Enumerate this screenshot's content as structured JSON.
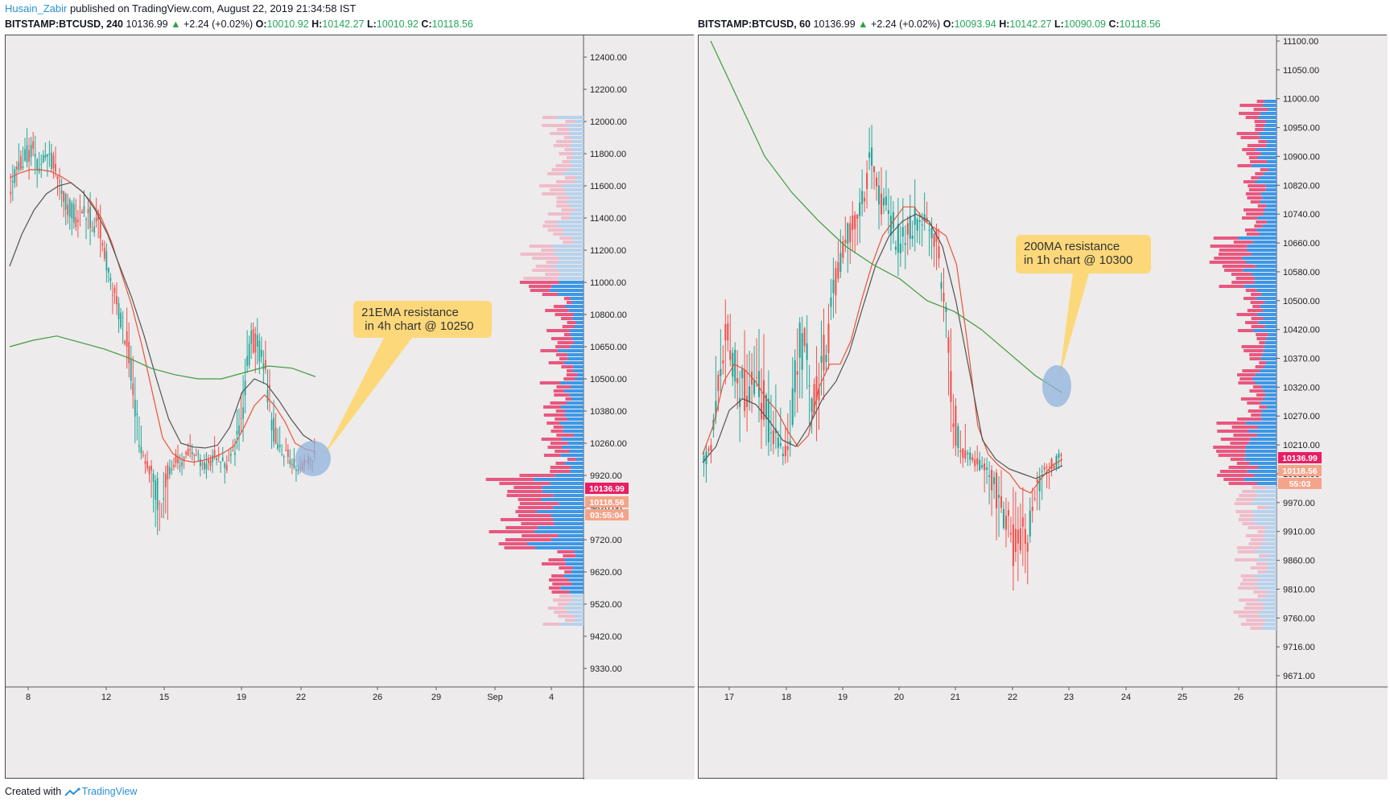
{
  "header": {
    "author": "Husain_Zabir",
    "published_text": "published on TradingView.com, August 22, 2019 21:34:58 IST"
  },
  "footer": {
    "created_with": "Created with",
    "brand": "TradingView"
  },
  "colors": {
    "up": "#26a69a",
    "down": "#ef5350",
    "ema": "#e8543c",
    "sma": "#555555",
    "ma200": "#3f9b3f",
    "vp_blue": "#3d97e6",
    "vp_pink": "#e8577f",
    "annotation_bg": "#fcd87a",
    "circle": "#8fb3dd"
  },
  "charts": [
    {
      "symbol": "BITSTAMP:BTCUSD, 240",
      "last": "10136.99",
      "change": "+2.24 (+0.02%)",
      "o_label": "O:",
      "o": "10010.92",
      "h_label": "H:",
      "h": "10142.27",
      "l_label": "L:",
      "l": "10010.92",
      "c_label": "C:",
      "c": "10118.56",
      "annotation": {
        "lines": [
          "21EMA resistance",
          " in 4h chart @ 10250"
        ]
      },
      "chart_data": {
        "type": "candlestick",
        "y_ticks": [
          "12400.00",
          "12200.00",
          "12000.00",
          "11800.00",
          "11600.00",
          "11400.00",
          "11200.00",
          "11000.00",
          "10800.00",
          "10650.00",
          "10500.00",
          "10380.00",
          "10260.00",
          "9920.00",
          "9820.00",
          "9720.00",
          "9620.00",
          "9520.00",
          "9420.00",
          "9330.00"
        ],
        "x_ticks": [
          "8",
          "12",
          "15",
          "19",
          "22",
          "26",
          "29",
          "Sep",
          "4"
        ],
        "price_labels": [
          {
            "text": "10136.99",
            "color": "#e91e63"
          },
          {
            "text": "10118.56",
            "color": "#f4a48a"
          },
          {
            "text": "03:55:04",
            "color": "#f4a48a"
          }
        ],
        "series": [
          {
            "name": "price",
            "values": [
              11600,
              11700,
              11750,
              11800,
              11850,
              11700,
              11750,
              11800,
              11700,
              11600,
              11500,
              11450,
              11400,
              11450,
              11420,
              11380,
              11350,
              11200,
              11000,
              10900,
              10800,
              10700,
              10500,
              10300,
              10100,
              10000,
              9900,
              9800,
              9950,
              10000,
              10100,
              10050,
              10150,
              10200,
              10100,
              10000,
              10050,
              10150,
              10100,
              10000,
              10100,
              10250,
              10400,
              10600,
              10700,
              10650,
              10550,
              10400,
              10250,
              10200,
              10150,
              10050,
              10000,
              10000,
              10100,
              10137
            ]
          },
          {
            "name": "ema21",
            "values": [
              11650,
              11680,
              11700,
              11700,
              11690,
              11660,
              11620,
              11570,
              11500,
              11400,
              11250,
              11050,
              10850,
              10650,
              10450,
              10280,
              10150,
              10080,
              10060,
              10080,
              10110,
              10160,
              10230,
              10320,
              10400,
              10440,
              10400,
              10340,
              10260,
              10200,
              10170
            ]
          },
          {
            "name": "sma",
            "values": [
              11100,
              11300,
              11450,
              11550,
              11600,
              11620,
              11560,
              11450,
              11300,
              11100,
              10900,
              10700,
              10500,
              10350,
              10260,
              10220,
              10210,
              10240,
              10320,
              10450,
              10500,
              10480,
              10420,
              10350,
              10290,
              10260
            ]
          },
          {
            "name": "ma200",
            "values": [
              10650,
              10680,
              10700,
              10670,
              10640,
              10600,
              10550,
              10520,
              10500,
              10500,
              10530,
              10560,
              10550,
              10510
            ]
          }
        ]
      }
    },
    {
      "symbol": "BITSTAMP:BTCUSD, 60",
      "last": "10136.99",
      "change": "+2.24 (+0.02%)",
      "o_label": "O:",
      "o": "10093.94",
      "h_label": "H:",
      "h": "10142.27",
      "l_label": "L:",
      "l": "10090.09",
      "c_label": "C:",
      "c": "10118.56",
      "annotation": {
        "lines": [
          "200MA resistance",
          "in 1h chart @ 10300"
        ]
      },
      "chart_data": {
        "type": "candlestick",
        "y_ticks": [
          "11100.00",
          "11050.00",
          "11000.00",
          "10950.00",
          "10900.00",
          "10820.00",
          "10740.00",
          "10660.00",
          "10580.00",
          "10500.00",
          "10420.00",
          "10370.00",
          "10320.00",
          "10270.00",
          "10210.00",
          "10030.00",
          "9970.00",
          "9910.00",
          "9860.00",
          "9810.00",
          "9760.00",
          "9716.00",
          "9671.00"
        ],
        "x_ticks": [
          "17",
          "18",
          "19",
          "20",
          "21",
          "22",
          "23",
          "24",
          "25",
          "26"
        ],
        "price_labels": [
          {
            "text": "10136.99",
            "color": "#e91e63"
          },
          {
            "text": "10118.56",
            "color": "#f4a48a"
          },
          {
            "text": "55:03",
            "color": "#f4a48a"
          }
        ],
        "series": [
          {
            "name": "price",
            "values": [
              10100,
              10200,
              10350,
              10420,
              10380,
              10320,
              10300,
              10350,
              10300,
              10250,
              10200,
              10150,
              10250,
              10400,
              10380,
              10300,
              10350,
              10400,
              10550,
              10650,
              10700,
              10720,
              10800,
              10900,
              10800,
              10750,
              10700,
              10650,
              10700,
              10720,
              10750,
              10700,
              10650,
              10500,
              10300,
              10200,
              10150,
              10100,
              10080,
              10050,
              10000,
              9950,
              9900,
              9880,
              9900,
              9950,
              10000,
              10050,
              10100,
              10137
            ]
          },
          {
            "name": "ema",
            "values": [
              10150,
              10250,
              10330,
              10360,
              10350,
              10330,
              10300,
              10280,
              10240,
              10200,
              10230,
              10320,
              10360,
              10360,
              10400,
              10500,
              10600,
              10680,
              10720,
              10760,
              10760,
              10720,
              10700,
              10680,
              10600,
              10400,
              10250,
              10150,
              10080,
              10030,
              10000,
              9990,
              10020,
              10080,
              10120
            ]
          },
          {
            "name": "sma",
            "values": [
              10100,
              10200,
              10280,
              10300,
              10290,
              10260,
              10220,
              10200,
              10250,
              10300,
              10330,
              10380,
              10480,
              10600,
              10680,
              10720,
              10740,
              10720,
              10650,
              10500,
              10350,
              10220,
              10120,
              10060,
              10030,
              10020,
              10040,
              10080
            ]
          },
          {
            "name": "ma200",
            "values": [
              11100,
              11000,
              10900,
              10800,
              10720,
              10650,
              10600,
              10560,
              10500,
              10470,
              10420,
              10380,
              10340,
              10310
            ]
          }
        ]
      }
    }
  ]
}
